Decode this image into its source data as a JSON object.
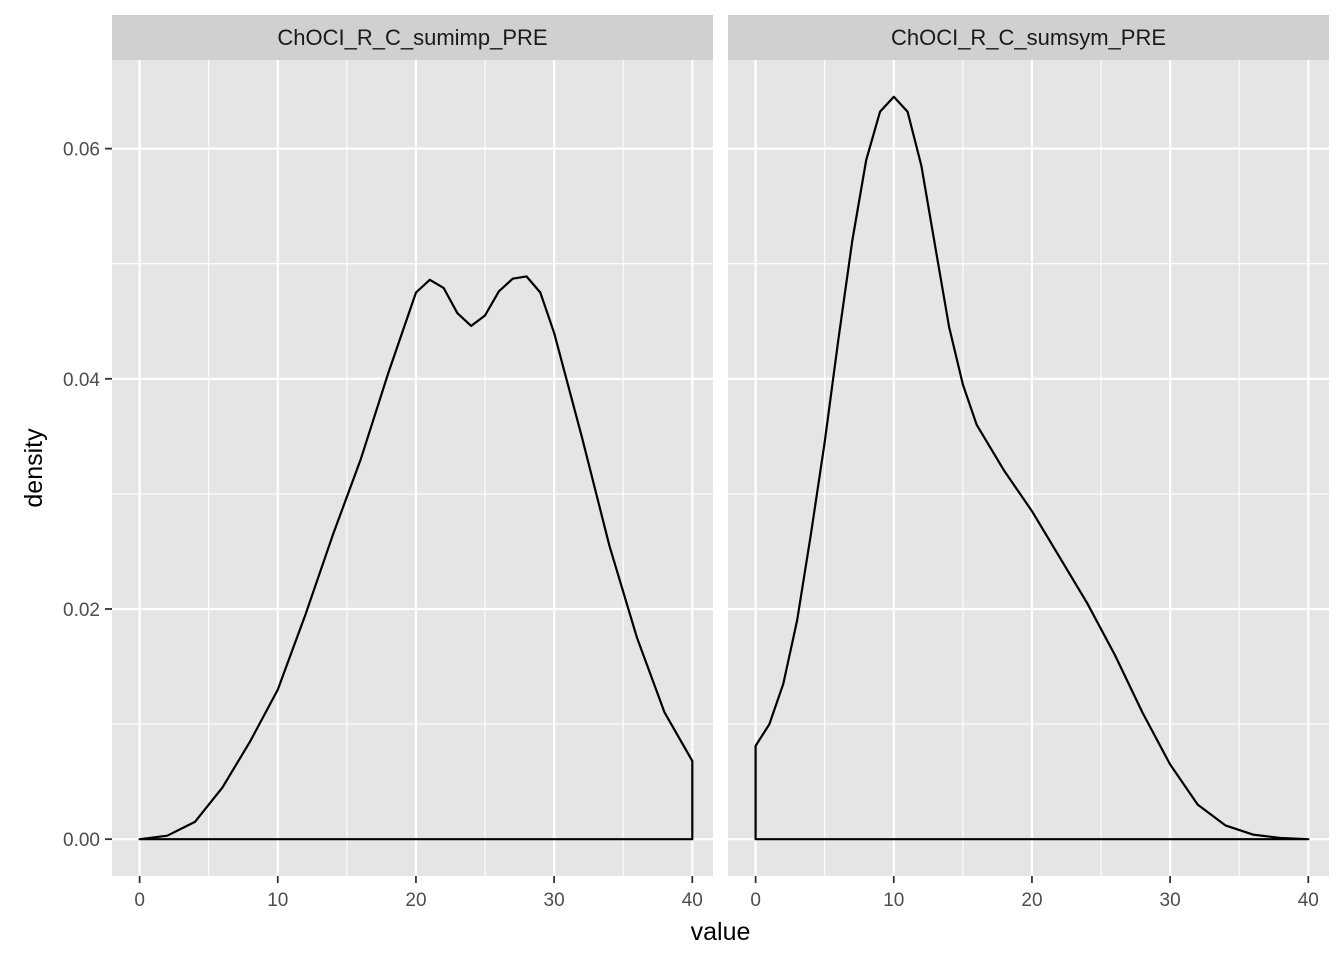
{
  "chart_data": {
    "type": "area",
    "xlabel": "value",
    "ylabel": "density",
    "xlim": [
      -2,
      41.5
    ],
    "ylim": [
      -0.0032,
      0.0677
    ],
    "x_ticks": [
      0,
      10,
      20,
      30,
      40
    ],
    "x_tick_labels": [
      "0",
      "10",
      "20",
      "30",
      "40"
    ],
    "y_ticks": [
      0.0,
      0.02,
      0.04,
      0.06
    ],
    "y_tick_labels": [
      "0.00",
      "0.02",
      "0.04",
      "0.06"
    ],
    "x_minor_ticks": [
      5,
      15,
      25,
      35
    ],
    "y_minor_ticks": [
      0.01,
      0.03,
      0.05
    ],
    "grid": true,
    "panel_background": "#e5e5e5",
    "strip_background": "#d0d0d0",
    "grid_color": "#ffffff",
    "line_color": "#000000",
    "panels": [
      {
        "strip_label": "ChOCI_R_C_sumimp_PRE",
        "points": [
          [
            0,
            0.0
          ],
          [
            2,
            0.0003
          ],
          [
            4,
            0.0015
          ],
          [
            6,
            0.0045
          ],
          [
            8,
            0.0085
          ],
          [
            10,
            0.013
          ],
          [
            12,
            0.0195
          ],
          [
            14,
            0.0265
          ],
          [
            16,
            0.033
          ],
          [
            18,
            0.0405
          ],
          [
            20,
            0.0475
          ],
          [
            21,
            0.0486
          ],
          [
            22,
            0.0479
          ],
          [
            23,
            0.0457
          ],
          [
            24,
            0.0446
          ],
          [
            25,
            0.0455
          ],
          [
            26,
            0.0476
          ],
          [
            27,
            0.0487
          ],
          [
            28,
            0.0489
          ],
          [
            29,
            0.0475
          ],
          [
            30,
            0.044
          ],
          [
            32,
            0.035
          ],
          [
            34,
            0.0255
          ],
          [
            36,
            0.0175
          ],
          [
            38,
            0.011
          ],
          [
            40,
            0.0068
          ]
        ]
      },
      {
        "strip_label": "ChOCI_R_C_sumsym_PRE",
        "points": [
          [
            0,
            0.0081
          ],
          [
            1,
            0.01
          ],
          [
            2,
            0.0135
          ],
          [
            3,
            0.019
          ],
          [
            4,
            0.0265
          ],
          [
            5,
            0.0345
          ],
          [
            6,
            0.0435
          ],
          [
            7,
            0.052
          ],
          [
            8,
            0.059
          ],
          [
            9,
            0.0632
          ],
          [
            10,
            0.0645
          ],
          [
            11,
            0.0632
          ],
          [
            12,
            0.0585
          ],
          [
            13,
            0.0515
          ],
          [
            14,
            0.0445
          ],
          [
            15,
            0.0395
          ],
          [
            16,
            0.036
          ],
          [
            18,
            0.032
          ],
          [
            20,
            0.0285
          ],
          [
            22,
            0.0245
          ],
          [
            24,
            0.0205
          ],
          [
            26,
            0.016
          ],
          [
            28,
            0.011
          ],
          [
            30,
            0.0065
          ],
          [
            32,
            0.003
          ],
          [
            34,
            0.0012
          ],
          [
            36,
            0.0004
          ],
          [
            38,
            0.0001
          ],
          [
            40,
            0.0
          ]
        ]
      }
    ]
  }
}
